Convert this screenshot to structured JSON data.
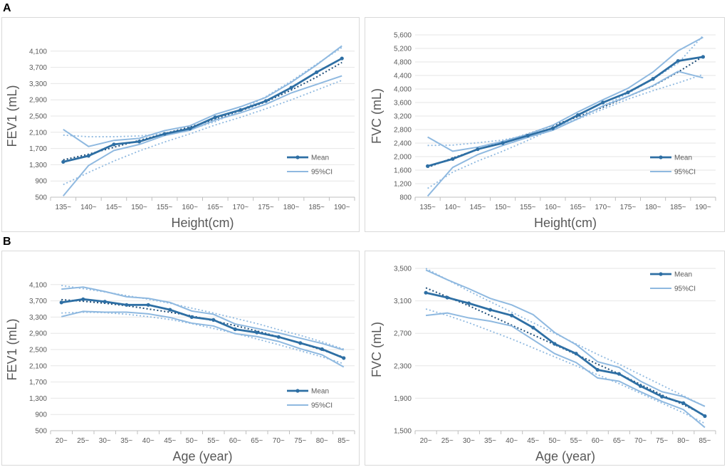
{
  "panels": {
    "a": "A",
    "b": "B"
  },
  "colors": {
    "mean": "#2e6fa4",
    "ci": "#8fb9e0",
    "trend_mean": "#1f4e79",
    "ci_trend": "#8fb9e0",
    "grid": "#e6e6e6",
    "axis": "#bfbfbf"
  },
  "chart_data": [
    {
      "type": "line",
      "panel": "A",
      "title": "",
      "xlabel": "Height(cm)",
      "ylabel": "FEV1 (mL)",
      "categories": [
        "135~",
        "140~",
        "145~",
        "150~",
        "155~",
        "160~",
        "165~",
        "170~",
        "175~",
        "180~",
        "185~",
        "190~"
      ],
      "ylim": [
        500,
        4500
      ],
      "yticks": [
        500,
        900,
        1300,
        1700,
        2100,
        2500,
        2900,
        3300,
        3700,
        4100
      ],
      "ytick_labels": [
        "500",
        "900",
        "1,300",
        "1,700",
        "2,100",
        "2,500",
        "2,900",
        "3,300",
        "3,700",
        "4,100"
      ],
      "legend": [
        "Mean",
        "95%CI"
      ],
      "series": [
        {
          "name": "Mean",
          "role": "mean",
          "values": [
            1370,
            1520,
            1800,
            1870,
            2060,
            2190,
            2470,
            2650,
            2870,
            3200,
            3580,
            3920
          ]
        },
        {
          "name": "95%CI",
          "role": "ci",
          "values": [
            2170,
            1750,
            1900,
            1950,
            2140,
            2260,
            2540,
            2730,
            2960,
            3330,
            3760,
            4230
          ]
        },
        {
          "name": "95%CI lower",
          "role": "ci",
          "values": [
            530,
            1280,
            1650,
            1800,
            2020,
            2150,
            2400,
            2580,
            2790,
            3070,
            3280,
            3490
          ]
        }
      ],
      "trendlines": [
        {
          "role": "trend_mean",
          "values": [
            1420,
            1560,
            1730,
            1900,
            2070,
            2230,
            2420,
            2630,
            2850,
            3140,
            3460,
            3820
          ]
        },
        {
          "role": "ci_trend",
          "values": [
            2030,
            1990,
            1990,
            2010,
            2070,
            2170,
            2360,
            2640,
            2980,
            3360,
            3780,
            4190
          ]
        },
        {
          "role": "ci_trend",
          "values": [
            810,
            1110,
            1390,
            1640,
            1860,
            2060,
            2280,
            2470,
            2680,
            2900,
            3140,
            3380
          ]
        }
      ]
    },
    {
      "type": "line",
      "panel": "A",
      "title": "",
      "xlabel": "Height(cm)",
      "ylabel": "FVC  (mL)",
      "categories": [
        "135~",
        "140~",
        "145~",
        "150~",
        "155~",
        "160~",
        "165~",
        "170~",
        "175~",
        "180~",
        "185~",
        "190~"
      ],
      "ylim": [
        800,
        5600
      ],
      "yticks": [
        800,
        1200,
        1600,
        2000,
        2400,
        2800,
        3200,
        3600,
        4000,
        4400,
        4800,
        5200,
        5600
      ],
      "ytick_labels": [
        "800",
        "1,200",
        "1,600",
        "2,000",
        "2,400",
        "2,800",
        "3,200",
        "3,600",
        "4,000",
        "4,400",
        "4,800",
        "5,200",
        "5,600"
      ],
      "legend": [
        "Mean",
        "95%CI"
      ],
      "series": [
        {
          "name": "Mean",
          "role": "mean",
          "values": [
            1720,
            1930,
            2220,
            2400,
            2620,
            2840,
            3230,
            3600,
            3900,
            4300,
            4830,
            4950
          ]
        },
        {
          "name": "95%CI",
          "role": "ci",
          "values": [
            2580,
            2160,
            2280,
            2450,
            2660,
            2930,
            3320,
            3680,
            4020,
            4500,
            5130,
            5530
          ]
        },
        {
          "name": "95%CI lower",
          "role": "ci",
          "values": [
            830,
            1680,
            2060,
            2330,
            2570,
            2780,
            3120,
            3500,
            3780,
            4100,
            4520,
            4330
          ]
        }
      ],
      "trendlines": [
        {
          "role": "trend_mean",
          "values": [
            1680,
            1960,
            2210,
            2440,
            2670,
            2920,
            3180,
            3460,
            3780,
            4090,
            4500,
            4960
          ]
        },
        {
          "role": "ci_trend",
          "values": [
            2330,
            2340,
            2410,
            2490,
            2640,
            2850,
            3130,
            3500,
            3870,
            4290,
            4760,
            5580
          ]
        },
        {
          "role": "ci_trend",
          "values": [
            1060,
            1540,
            1870,
            2160,
            2480,
            2820,
            3110,
            3400,
            3700,
            3950,
            4180,
            4430
          ]
        }
      ]
    },
    {
      "type": "line",
      "panel": "B",
      "title": "",
      "xlabel": "Age (year)",
      "ylabel": "FEV1 (mL)",
      "categories": [
        "20~",
        "25~",
        "30~",
        "35~",
        "40~",
        "45~",
        "50~",
        "55~",
        "60~",
        "65~",
        "70~",
        "75~",
        "80~",
        "85~"
      ],
      "ylim": [
        500,
        4500
      ],
      "yticks": [
        500,
        900,
        1300,
        1700,
        2100,
        2500,
        2900,
        3300,
        3700,
        4100
      ],
      "ytick_labels": [
        "500",
        "900",
        "1,300",
        "1,700",
        "2,100",
        "2,500",
        "2,900",
        "3,300",
        "3,700",
        "4,100"
      ],
      "legend": [
        "Mean",
        "95%CI"
      ],
      "series": [
        {
          "name": "Mean",
          "role": "mean",
          "values": [
            3660,
            3740,
            3680,
            3600,
            3600,
            3480,
            3300,
            3230,
            3000,
            2920,
            2810,
            2660,
            2510,
            2290
          ]
        },
        {
          "name": "95%CI",
          "role": "ci",
          "values": [
            3990,
            4040,
            3930,
            3800,
            3760,
            3660,
            3450,
            3370,
            3130,
            3020,
            2910,
            2780,
            2650,
            2490
          ]
        },
        {
          "name": "95%CI lower",
          "role": "ci",
          "values": [
            3310,
            3440,
            3420,
            3420,
            3380,
            3290,
            3150,
            3080,
            2890,
            2820,
            2700,
            2520,
            2370,
            2070
          ]
        }
      ],
      "trendlines": [
        {
          "role": "trend_mean",
          "values": [
            3730,
            3690,
            3640,
            3580,
            3500,
            3420,
            3330,
            3210,
            3090,
            2960,
            2810,
            2660,
            2490,
            2310
          ]
        },
        {
          "role": "ci_trend",
          "values": [
            4080,
            4000,
            3920,
            3830,
            3740,
            3640,
            3520,
            3400,
            3270,
            3140,
            2990,
            2850,
            2690,
            2510
          ]
        },
        {
          "role": "ci_trend",
          "values": [
            3400,
            3420,
            3410,
            3370,
            3310,
            3240,
            3140,
            3020,
            2900,
            2760,
            2620,
            2470,
            2320,
            2150
          ]
        }
      ]
    },
    {
      "type": "line",
      "panel": "B",
      "title": "",
      "xlabel": "Age (year)",
      "ylabel": "FVC (mL)",
      "categories": [
        "20~",
        "25~",
        "30~",
        "35~",
        "40~",
        "45~",
        "50~",
        "55~",
        "60~",
        "65~",
        "70~",
        "75~",
        "80~",
        "85~"
      ],
      "ylim": [
        1500,
        3500
      ],
      "yticks": [
        1500,
        1900,
        2300,
        2700,
        3100,
        3500
      ],
      "ytick_labels": [
        "1,500",
        "1,900",
        "2,300",
        "2,700",
        "3,100",
        "3,500"
      ],
      "legend": [
        "Mean",
        "95%CI"
      ],
      "series": [
        {
          "name": "Mean",
          "role": "mean",
          "values": [
            3200,
            3140,
            3070,
            2990,
            2920,
            2770,
            2570,
            2450,
            2250,
            2200,
            2050,
            1920,
            1840,
            1680
          ]
        },
        {
          "name": "95%CI",
          "role": "ci",
          "values": [
            3480,
            3360,
            3250,
            3130,
            3050,
            2930,
            2710,
            2560,
            2350,
            2280,
            2110,
            1980,
            1920,
            1800
          ]
        },
        {
          "name": "95%CI lower",
          "role": "ci",
          "values": [
            2920,
            2950,
            2890,
            2850,
            2790,
            2620,
            2450,
            2340,
            2150,
            2110,
            1980,
            1860,
            1760,
            1540
          ]
        }
      ],
      "trendlines": [
        {
          "role": "trend_mean",
          "values": [
            3260,
            3150,
            3040,
            2920,
            2800,
            2680,
            2560,
            2440,
            2320,
            2200,
            2070,
            1940,
            1820,
            1690
          ]
        },
        {
          "role": "ci_trend",
          "values": [
            3500,
            3360,
            3220,
            3090,
            2960,
            2830,
            2700,
            2570,
            2440,
            2320,
            2190,
            2060,
            1930,
            1800
          ]
        },
        {
          "role": "ci_trend",
          "values": [
            3000,
            2920,
            2830,
            2730,
            2630,
            2520,
            2410,
            2300,
            2190,
            2080,
            1960,
            1840,
            1720,
            1590
          ]
        }
      ]
    }
  ]
}
